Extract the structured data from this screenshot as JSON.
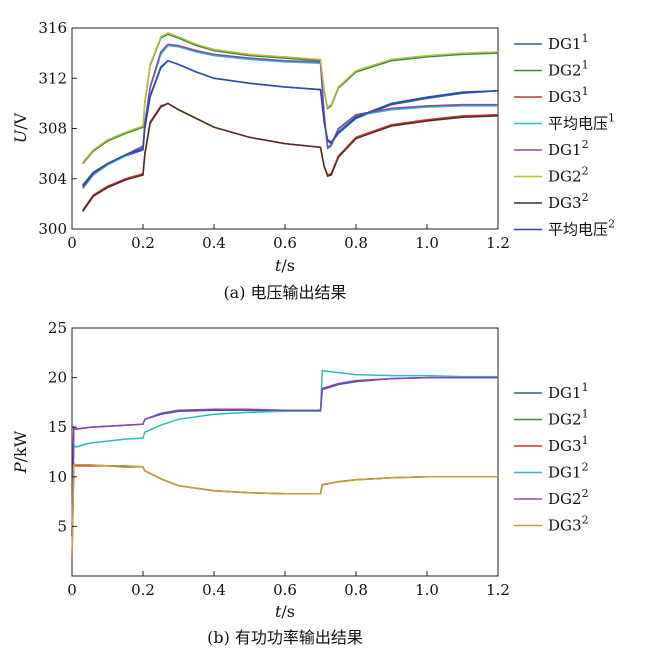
{
  "chart_data": [
    {
      "type": "line",
      "caption": "(a) 电压输出结果",
      "xlabel_italic": "t",
      "xlabel_unit": "/s",
      "ylabel_italic": "U",
      "ylabel_unit": "/V",
      "xlim": [
        0,
        1.2
      ],
      "ylim": [
        300,
        316
      ],
      "xticks": [
        0,
        0.2,
        0.4,
        0.6,
        0.8,
        1.0,
        1.2
      ],
      "xtick_labels": [
        "0",
        "0.2",
        "0.4",
        "0.6",
        "0.8",
        "1.0",
        "1.2"
      ],
      "yticks": [
        300,
        304,
        308,
        312,
        316
      ],
      "ytick_labels": [
        "300",
        "304",
        "308",
        "312",
        "316"
      ],
      "legend_position": "right",
      "series": [
        {
          "name_base": "DG1",
          "name_sup": "1",
          "color": "#2a5ca8",
          "x": [
            0.03,
            0.06,
            0.1,
            0.15,
            0.2,
            0.205,
            0.22,
            0.25,
            0.27,
            0.3,
            0.35,
            0.4,
            0.5,
            0.6,
            0.7,
            0.71,
            0.72,
            0.73,
            0.75,
            0.8,
            0.9,
            1.0,
            1.1,
            1.2
          ],
          "y": [
            303.5,
            304.5,
            305.2,
            305.8,
            306.3,
            308.0,
            310.5,
            312.8,
            313.4,
            313.1,
            312.5,
            312.0,
            311.6,
            311.3,
            311.1,
            308.5,
            307.0,
            306.8,
            307.6,
            308.8,
            309.9,
            310.4,
            310.8,
            311.0
          ]
        },
        {
          "name_base": "DG2",
          "name_sup": "1",
          "color": "#3a8a3a",
          "x": [
            0.03,
            0.06,
            0.1,
            0.15,
            0.2,
            0.205,
            0.22,
            0.25,
            0.27,
            0.3,
            0.35,
            0.4,
            0.5,
            0.6,
            0.7,
            0.71,
            0.72,
            0.73,
            0.75,
            0.8,
            0.9,
            1.0,
            1.1,
            1.2
          ],
          "y": [
            305.2,
            306.2,
            307.0,
            307.6,
            308.1,
            310.0,
            313.0,
            315.2,
            315.5,
            315.2,
            314.6,
            314.2,
            313.8,
            313.6,
            313.4,
            311.0,
            309.6,
            309.8,
            311.2,
            312.5,
            313.4,
            313.7,
            313.9,
            314.0
          ]
        },
        {
          "name_base": "DG3",
          "name_sup": "1",
          "color": "#d03030",
          "x": [
            0.03,
            0.06,
            0.1,
            0.15,
            0.2,
            0.205,
            0.22,
            0.25,
            0.27,
            0.3,
            0.35,
            0.4,
            0.5,
            0.6,
            0.7,
            0.71,
            0.72,
            0.73,
            0.75,
            0.8,
            0.9,
            1.0,
            1.1,
            1.2
          ],
          "y": [
            301.5,
            302.7,
            303.4,
            304.0,
            304.4,
            306.0,
            308.5,
            309.8,
            310.0,
            309.5,
            308.8,
            308.1,
            307.3,
            306.8,
            306.5,
            305.0,
            304.3,
            304.4,
            305.8,
            307.3,
            308.3,
            308.7,
            309.0,
            309.1
          ]
        },
        {
          "name_base": "平均电压",
          "name_sup": "1",
          "color": "#2abcbc",
          "x": [
            0.03,
            0.06,
            0.1,
            0.15,
            0.2,
            0.205,
            0.22,
            0.25,
            0.27,
            0.3,
            0.35,
            0.4,
            0.5,
            0.6,
            0.7,
            0.71,
            0.72,
            0.73,
            0.75,
            0.8,
            0.9,
            1.0,
            1.1,
            1.2
          ],
          "y": [
            303.2,
            304.3,
            305.1,
            305.8,
            306.5,
            308.3,
            311.2,
            313.9,
            314.6,
            314.5,
            314.1,
            313.8,
            313.5,
            313.3,
            313.2,
            309.0,
            306.4,
            306.6,
            307.9,
            309.0,
            309.5,
            309.7,
            309.8,
            309.8
          ]
        },
        {
          "name_base": "DG1",
          "name_sup": "2",
          "color": "#9040b0",
          "x": [
            0.03,
            0.06,
            0.1,
            0.15,
            0.2,
            0.205,
            0.22,
            0.25,
            0.27,
            0.3,
            0.35,
            0.4,
            0.5,
            0.6,
            0.7,
            0.71,
            0.72,
            0.73,
            0.75,
            0.8,
            0.9,
            1.0,
            1.1,
            1.2
          ],
          "y": [
            303.3,
            304.4,
            305.2,
            305.9,
            306.6,
            308.4,
            311.3,
            314.1,
            314.7,
            314.6,
            314.2,
            313.9,
            313.6,
            313.4,
            313.3,
            309.2,
            306.5,
            306.7,
            308.0,
            309.1,
            309.6,
            309.8,
            309.9,
            309.9
          ]
        },
        {
          "name_base": "DG2",
          "name_sup": "2",
          "color": "#b8c040",
          "x": [
            0.03,
            0.06,
            0.1,
            0.15,
            0.2,
            0.205,
            0.22,
            0.25,
            0.27,
            0.3,
            0.35,
            0.4,
            0.5,
            0.6,
            0.7,
            0.71,
            0.72,
            0.73,
            0.75,
            0.8,
            0.9,
            1.0,
            1.1,
            1.2
          ],
          "y": [
            305.3,
            306.3,
            307.1,
            307.7,
            308.2,
            310.1,
            313.1,
            315.3,
            315.6,
            315.3,
            314.7,
            314.3,
            313.9,
            313.7,
            313.5,
            311.1,
            309.7,
            309.9,
            311.3,
            312.6,
            313.5,
            313.8,
            314.0,
            314.1
          ]
        },
        {
          "name_base": "DG3",
          "name_sup": "2",
          "color": "#4a2e22",
          "x": [
            0.03,
            0.06,
            0.1,
            0.15,
            0.2,
            0.205,
            0.22,
            0.25,
            0.27,
            0.3,
            0.35,
            0.4,
            0.5,
            0.6,
            0.7,
            0.71,
            0.72,
            0.73,
            0.75,
            0.8,
            0.9,
            1.0,
            1.1,
            1.2
          ],
          "y": [
            301.4,
            302.6,
            303.3,
            303.9,
            304.3,
            305.9,
            308.4,
            309.7,
            310.0,
            309.5,
            308.8,
            308.1,
            307.3,
            306.8,
            306.5,
            305.0,
            304.2,
            304.3,
            305.7,
            307.2,
            308.2,
            308.6,
            308.9,
            309.0
          ]
        },
        {
          "name_base": "平均电压",
          "name_sup": "2",
          "color": "#3048a8",
          "x": [
            0.03,
            0.06,
            0.1,
            0.15,
            0.2,
            0.205,
            0.22,
            0.25,
            0.27,
            0.3,
            0.35,
            0.4,
            0.5,
            0.6,
            0.7,
            0.71,
            0.72,
            0.73,
            0.75,
            0.8,
            0.9,
            1.0,
            1.1,
            1.2
          ],
          "y": [
            303.4,
            304.5,
            305.2,
            305.9,
            306.4,
            308.1,
            310.6,
            312.9,
            313.4,
            313.1,
            312.5,
            312.0,
            311.6,
            311.3,
            311.1,
            308.6,
            307.1,
            306.9,
            307.7,
            308.9,
            310.0,
            310.5,
            310.9,
            311.0
          ]
        }
      ]
    },
    {
      "type": "line",
      "caption": "(b) 有功功率输出结果",
      "xlabel_italic": "t",
      "xlabel_unit": "/s",
      "ylabel_italic": "P",
      "ylabel_unit": "/kW",
      "xlim": [
        0,
        1.2
      ],
      "ylim": [
        0,
        25
      ],
      "xticks": [
        0,
        0.2,
        0.4,
        0.6,
        0.8,
        1.0,
        1.2
      ],
      "xtick_labels": [
        "0",
        "0.2",
        "0.4",
        "0.6",
        "0.8",
        "1.0",
        "1.2"
      ],
      "yticks": [
        5,
        10,
        15,
        20,
        25
      ],
      "ytick_labels": [
        "5",
        "10",
        "15",
        "20",
        "25"
      ],
      "legend_position": "right",
      "series": [
        {
          "name_base": "DG1",
          "name_sup": "1",
          "color": "#2a5ca8",
          "x": [
            0,
            0.005,
            0.01,
            0.05,
            0.1,
            0.15,
            0.2,
            0.205,
            0.25,
            0.3,
            0.4,
            0.5,
            0.6,
            0.7,
            0.705,
            0.75,
            0.8,
            0.9,
            1.0,
            1.1,
            1.2
          ],
          "y": [
            4,
            15.0,
            14.8,
            15.0,
            15.1,
            15.2,
            15.3,
            15.8,
            16.3,
            16.6,
            16.7,
            16.7,
            16.6,
            16.6,
            18.8,
            19.3,
            19.6,
            19.9,
            20.0,
            20.0,
            20.0
          ]
        },
        {
          "name_base": "DG2",
          "name_sup": "1",
          "color": "#3a8a3a",
          "x": [
            0,
            0.005,
            0.01,
            0.05,
            0.1,
            0.15,
            0.2,
            0.205,
            0.25,
            0.3,
            0.4,
            0.5,
            0.6,
            0.7,
            0.705,
            0.75,
            0.8,
            0.9,
            1.0,
            1.1,
            1.2
          ],
          "y": [
            2,
            11.3,
            11.2,
            11.2,
            11.1,
            11.1,
            11.0,
            10.6,
            9.8,
            9.1,
            8.6,
            8.4,
            8.3,
            8.3,
            9.2,
            9.5,
            9.7,
            9.9,
            10.0,
            10.0,
            10.0
          ]
        },
        {
          "name_base": "DG3",
          "name_sup": "1",
          "color": "#d03030",
          "x": [
            0,
            0.005,
            0.01,
            0.05,
            0.1,
            0.15,
            0.2,
            0.205,
            0.25,
            0.3,
            0.4,
            0.5,
            0.6,
            0.7,
            0.705,
            0.75,
            0.8,
            0.9,
            1.0,
            1.1,
            1.2
          ],
          "y": [
            2,
            11.2,
            11.1,
            11.1,
            11.1,
            11.0,
            11.0,
            10.6,
            9.8,
            9.1,
            8.6,
            8.4,
            8.3,
            8.3,
            9.2,
            9.5,
            9.7,
            9.9,
            10.0,
            10.0,
            10.0
          ]
        },
        {
          "name_base": "DG1",
          "name_sup": "2",
          "color": "#2abcbc",
          "x": [
            0,
            0.005,
            0.01,
            0.05,
            0.1,
            0.15,
            0.2,
            0.205,
            0.25,
            0.3,
            0.4,
            0.5,
            0.6,
            0.7,
            0.705,
            0.75,
            0.8,
            0.9,
            1.0,
            1.1,
            1.2
          ],
          "y": [
            4,
            13.2,
            13.0,
            13.4,
            13.6,
            13.8,
            13.9,
            14.5,
            15.2,
            15.8,
            16.3,
            16.5,
            16.6,
            16.6,
            20.7,
            20.5,
            20.3,
            20.2,
            20.2,
            20.1,
            20.1
          ]
        },
        {
          "name_base": "DG2",
          "name_sup": "2",
          "color": "#9040b0",
          "x": [
            0,
            0.005,
            0.01,
            0.05,
            0.1,
            0.15,
            0.2,
            0.205,
            0.25,
            0.3,
            0.4,
            0.5,
            0.6,
            0.7,
            0.705,
            0.75,
            0.8,
            0.9,
            1.0,
            1.1,
            1.2
          ],
          "y": [
            4,
            14.9,
            14.8,
            15.0,
            15.1,
            15.2,
            15.3,
            15.8,
            16.4,
            16.7,
            16.8,
            16.8,
            16.7,
            16.7,
            18.9,
            19.4,
            19.7,
            19.9,
            20.0,
            20.0,
            20.0
          ]
        },
        {
          "name_base": "DG3",
          "name_sup": "2",
          "color": "#c0a040",
          "x": [
            0,
            0.005,
            0.01,
            0.05,
            0.1,
            0.15,
            0.2,
            0.205,
            0.25,
            0.3,
            0.4,
            0.5,
            0.6,
            0.7,
            0.705,
            0.75,
            0.8,
            0.9,
            1.0,
            1.1,
            1.2
          ],
          "y": [
            2,
            11.2,
            11.2,
            11.2,
            11.1,
            11.1,
            11.0,
            10.6,
            9.8,
            9.1,
            8.6,
            8.4,
            8.3,
            8.3,
            9.2,
            9.5,
            9.7,
            9.9,
            10.0,
            10.0,
            10.0
          ]
        }
      ]
    }
  ]
}
